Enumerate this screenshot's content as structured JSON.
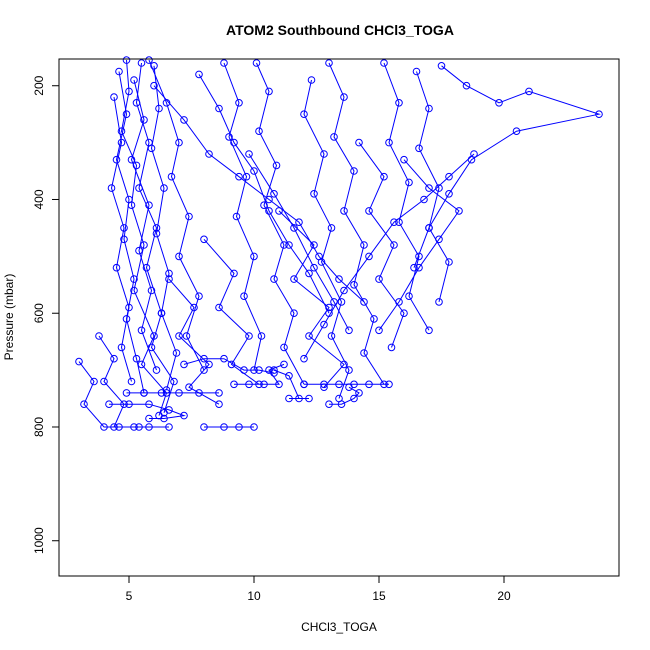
{
  "chart_data": {
    "type": "scatter",
    "title": "ATOM2 Southbound CHCl3_TOGA",
    "xlabel": "CHCl3_TOGA",
    "ylabel": "Pressure (mbar)",
    "xlim": [
      2.2,
      24.6
    ],
    "ylim": [
      1062,
      153
    ],
    "y_reversed": true,
    "grid": false,
    "x_ticks": [
      5,
      10,
      15,
      20
    ],
    "y_ticks": [
      200,
      400,
      600,
      800,
      1000
    ],
    "series_color": "#0000ff",
    "series": [
      {
        "points": [
          [
            4.9,
            155
          ],
          [
            5.0,
            210
          ],
          [
            4.7,
            280
          ],
          [
            5.3,
            340
          ],
          [
            5.1,
            410
          ],
          [
            5.6,
            480
          ],
          [
            5.2,
            560
          ],
          [
            6.0,
            640
          ],
          [
            5.5,
            690
          ],
          [
            6.5,
            740
          ],
          [
            6.2,
            780
          ]
        ]
      },
      {
        "points": [
          [
            5.5,
            160
          ],
          [
            5.3,
            230
          ],
          [
            5.8,
            300
          ],
          [
            5.4,
            380
          ],
          [
            6.1,
            450
          ],
          [
            5.7,
            520
          ],
          [
            6.3,
            600
          ],
          [
            5.9,
            660
          ],
          [
            6.8,
            720
          ],
          [
            6.4,
            775
          ]
        ]
      },
      {
        "points": [
          [
            4.6,
            175
          ],
          [
            4.9,
            250
          ],
          [
            4.5,
            330
          ],
          [
            5.0,
            400
          ],
          [
            4.8,
            470
          ],
          [
            5.2,
            540
          ],
          [
            4.9,
            610
          ],
          [
            5.3,
            680
          ],
          [
            5.6,
            740
          ]
        ]
      },
      {
        "points": [
          [
            6.0,
            165
          ],
          [
            6.2,
            240
          ],
          [
            5.9,
            310
          ],
          [
            6.4,
            380
          ],
          [
            6.1,
            460
          ],
          [
            6.6,
            530
          ],
          [
            6.3,
            600
          ],
          [
            6.9,
            670
          ],
          [
            6.5,
            735
          ]
        ]
      },
      {
        "points": [
          [
            5.2,
            190
          ],
          [
            5.6,
            260
          ],
          [
            5.1,
            330
          ],
          [
            5.8,
            410
          ],
          [
            5.4,
            490
          ],
          [
            5.9,
            560
          ],
          [
            5.5,
            630
          ],
          [
            6.1,
            700
          ]
        ]
      },
      {
        "points": [
          [
            5.8,
            155
          ],
          [
            6.5,
            230
          ],
          [
            7.0,
            300
          ],
          [
            6.7,
            360
          ],
          [
            7.4,
            430
          ],
          [
            7.0,
            500
          ],
          [
            7.8,
            570
          ],
          [
            7.3,
            640
          ],
          [
            8.0,
            700
          ]
        ]
      },
      {
        "points": [
          [
            4.4,
            220
          ],
          [
            4.7,
            300
          ],
          [
            4.3,
            380
          ],
          [
            4.8,
            450
          ],
          [
            4.5,
            520
          ],
          [
            5.0,
            590
          ],
          [
            4.7,
            660
          ],
          [
            5.1,
            720
          ]
        ]
      },
      {
        "points": [
          [
            8.8,
            160
          ],
          [
            9.4,
            230
          ],
          [
            9.0,
            290
          ],
          [
            9.7,
            360
          ],
          [
            9.3,
            430
          ],
          [
            10.0,
            500
          ],
          [
            9.6,
            570
          ],
          [
            10.3,
            640
          ],
          [
            10.0,
            700
          ]
        ]
      },
      {
        "points": [
          [
            10.1,
            160
          ],
          [
            10.6,
            210
          ],
          [
            10.2,
            280
          ],
          [
            10.9,
            340
          ],
          [
            10.4,
            410
          ],
          [
            11.2,
            480
          ],
          [
            10.8,
            540
          ],
          [
            11.6,
            600
          ],
          [
            11.2,
            660
          ],
          [
            12.0,
            725
          ]
        ]
      },
      {
        "points": [
          [
            12.3,
            190
          ],
          [
            12.0,
            250
          ],
          [
            12.8,
            320
          ],
          [
            12.4,
            390
          ],
          [
            13.1,
            450
          ],
          [
            12.7,
            510
          ],
          [
            13.5,
            580
          ],
          [
            13.1,
            640
          ],
          [
            13.8,
            700
          ],
          [
            13.4,
            750
          ]
        ]
      },
      {
        "points": [
          [
            13.0,
            160
          ],
          [
            13.6,
            220
          ],
          [
            13.2,
            290
          ],
          [
            14.0,
            350
          ],
          [
            13.6,
            420
          ],
          [
            14.4,
            480
          ],
          [
            14.0,
            550
          ],
          [
            14.8,
            610
          ],
          [
            14.4,
            670
          ],
          [
            15.2,
            725
          ]
        ]
      },
      {
        "points": [
          [
            15.2,
            160
          ],
          [
            15.8,
            230
          ],
          [
            15.4,
            300
          ],
          [
            16.2,
            370
          ],
          [
            15.8,
            440
          ],
          [
            16.6,
            500
          ],
          [
            16.2,
            570
          ],
          [
            17.0,
            630
          ]
        ]
      },
      {
        "points": [
          [
            16.5,
            175
          ],
          [
            17.0,
            240
          ],
          [
            16.6,
            310
          ],
          [
            17.4,
            380
          ],
          [
            17.0,
            450
          ],
          [
            17.8,
            510
          ],
          [
            17.4,
            580
          ]
        ]
      },
      {
        "points": [
          [
            17.5,
            165
          ],
          [
            18.5,
            200
          ],
          [
            19.8,
            230
          ],
          [
            21.0,
            210
          ],
          [
            23.8,
            250
          ],
          [
            20.5,
            280
          ],
          [
            18.7,
            330
          ],
          [
            17.8,
            390
          ],
          [
            17.0,
            450
          ],
          [
            16.4,
            520
          ]
        ]
      },
      {
        "points": [
          [
            14.2,
            300
          ],
          [
            15.2,
            360
          ],
          [
            14.6,
            420
          ],
          [
            15.6,
            480
          ],
          [
            15.0,
            540
          ],
          [
            16.0,
            600
          ],
          [
            15.5,
            660
          ]
        ]
      },
      {
        "points": [
          [
            11.0,
            420
          ],
          [
            12.4,
            480
          ],
          [
            11.6,
            540
          ],
          [
            13.0,
            590
          ],
          [
            12.2,
            640
          ],
          [
            13.6,
            690
          ],
          [
            12.8,
            730
          ]
        ]
      },
      {
        "points": [
          [
            8.0,
            470
          ],
          [
            9.2,
            530
          ],
          [
            8.6,
            590
          ],
          [
            9.8,
            640
          ],
          [
            9.1,
            690
          ],
          [
            10.2,
            725
          ]
        ]
      },
      {
        "points": [
          [
            6.6,
            540
          ],
          [
            7.6,
            590
          ],
          [
            7.0,
            640
          ],
          [
            8.2,
            690
          ],
          [
            7.4,
            730
          ],
          [
            8.6,
            760
          ]
        ]
      },
      {
        "points": [
          [
            3.0,
            685
          ],
          [
            3.6,
            720
          ],
          [
            3.2,
            760
          ],
          [
            4.0,
            800
          ],
          [
            4.6,
            800
          ],
          [
            5.2,
            800
          ],
          [
            5.8,
            800
          ]
        ]
      },
      {
        "points": [
          [
            3.8,
            640
          ],
          [
            4.4,
            680
          ],
          [
            4.0,
            720
          ],
          [
            4.8,
            760
          ],
          [
            4.4,
            800
          ],
          [
            5.4,
            800
          ],
          [
            6.6,
            800
          ]
        ]
      },
      {
        "points": [
          [
            4.9,
            740
          ],
          [
            5.6,
            740
          ],
          [
            6.3,
            740
          ],
          [
            7.0,
            740
          ],
          [
            7.8,
            740
          ],
          [
            8.6,
            740
          ]
        ]
      },
      {
        "points": [
          [
            4.2,
            760
          ],
          [
            5.0,
            760
          ],
          [
            5.8,
            760
          ],
          [
            6.6,
            770
          ],
          [
            7.2,
            780
          ],
          [
            6.4,
            785
          ],
          [
            5.8,
            785
          ]
        ]
      },
      {
        "points": [
          [
            8.0,
            800
          ],
          [
            8.8,
            800
          ],
          [
            9.4,
            800
          ],
          [
            10.0,
            800
          ]
        ]
      },
      {
        "points": [
          [
            12.0,
            725
          ],
          [
            12.8,
            725
          ],
          [
            13.4,
            725
          ],
          [
            14.0,
            725
          ],
          [
            14.6,
            725
          ],
          [
            15.4,
            725
          ]
        ]
      },
      {
        "points": [
          [
            13.0,
            760
          ],
          [
            13.5,
            760
          ],
          [
            14.0,
            750
          ],
          [
            14.2,
            740
          ],
          [
            13.8,
            730
          ]
        ]
      },
      {
        "points": [
          [
            10.8,
            700
          ],
          [
            11.4,
            710
          ],
          [
            11.8,
            750
          ],
          [
            12.2,
            750
          ],
          [
            11.4,
            750
          ]
        ]
      },
      {
        "points": [
          [
            9.2,
            725
          ],
          [
            9.8,
            725
          ],
          [
            10.4,
            725
          ],
          [
            11.0,
            725
          ],
          [
            10.6,
            700
          ],
          [
            11.2,
            690
          ]
        ]
      },
      {
        "points": [
          [
            7.2,
            690
          ],
          [
            8.0,
            680
          ],
          [
            8.8,
            680
          ],
          [
            9.6,
            700
          ],
          [
            10.2,
            700
          ],
          [
            10.8,
            705
          ]
        ]
      },
      {
        "points": [
          [
            6.0,
            200
          ],
          [
            7.2,
            260
          ],
          [
            8.2,
            320
          ],
          [
            9.4,
            360
          ],
          [
            10.6,
            400
          ],
          [
            11.8,
            440
          ],
          [
            12.6,
            500
          ],
          [
            13.4,
            540
          ],
          [
            14.4,
            580
          ]
        ]
      },
      {
        "points": [
          [
            9.8,
            320
          ],
          [
            10.8,
            390
          ],
          [
            11.6,
            450
          ],
          [
            12.4,
            520
          ],
          [
            13.2,
            580
          ],
          [
            13.8,
            630
          ]
        ]
      },
      {
        "points": [
          [
            7.8,
            180
          ],
          [
            8.6,
            240
          ],
          [
            9.2,
            300
          ],
          [
            10.0,
            350
          ],
          [
            10.6,
            420
          ],
          [
            11.4,
            480
          ],
          [
            12.2,
            530
          ],
          [
            13.0,
            600
          ]
        ]
      },
      {
        "points": [
          [
            16.0,
            330
          ],
          [
            17.0,
            380
          ],
          [
            18.2,
            420
          ],
          [
            17.4,
            470
          ],
          [
            16.6,
            520
          ],
          [
            15.8,
            580
          ],
          [
            15.0,
            630
          ]
        ]
      },
      {
        "points": [
          [
            18.8,
            320
          ],
          [
            17.8,
            360
          ],
          [
            16.8,
            400
          ],
          [
            15.6,
            440
          ],
          [
            14.6,
            500
          ],
          [
            13.6,
            560
          ],
          [
            12.8,
            620
          ],
          [
            12.0,
            680
          ]
        ]
      }
    ]
  }
}
